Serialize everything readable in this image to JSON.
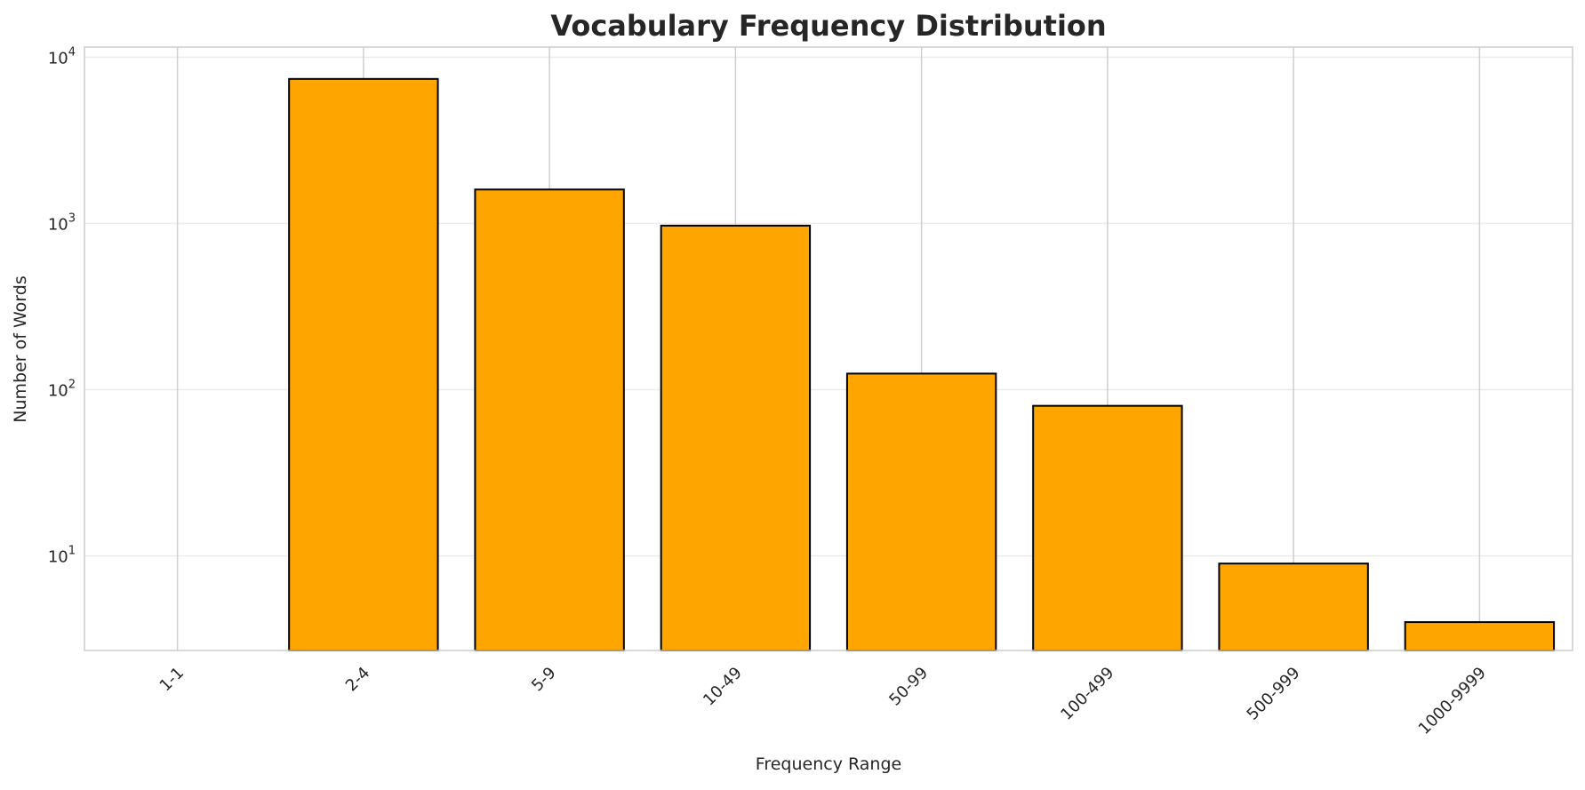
{
  "chart_data": {
    "type": "bar",
    "title": "Vocabulary Frequency Distribution",
    "xlabel": "Frequency Range",
    "ylabel": "Number of Words",
    "y_scale": "log",
    "ylim": [
      2.7,
      11500
    ],
    "categories": [
      "1-1",
      "2-4",
      "5-9",
      "10-49",
      "50-99",
      "100-499",
      "500-999",
      "1000-9999"
    ],
    "values": [
      null,
      7400,
      1600,
      970,
      125,
      80,
      9,
      4
    ],
    "y_ticks": [
      {
        "value": 10,
        "base": "10",
        "exp": "1"
      },
      {
        "value": 100,
        "base": "10",
        "exp": "2"
      },
      {
        "value": 1000,
        "base": "10",
        "exp": "3"
      },
      {
        "value": 10000,
        "base": "10",
        "exp": "4"
      }
    ],
    "grid": true,
    "bar_color": "#FFA500",
    "bar_edge_color": "#000000"
  }
}
